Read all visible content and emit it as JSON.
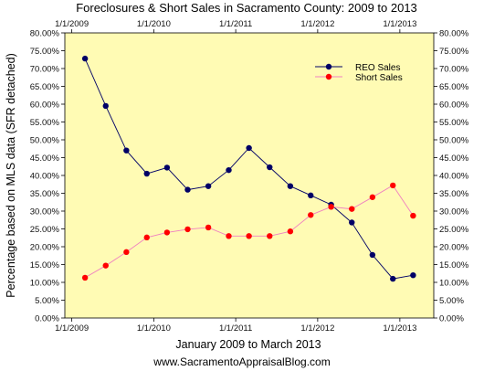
{
  "chart_data": {
    "type": "line",
    "title": "Foreclosures &  Short Sales in Sacramento County: 2009 to 2013",
    "xlabel": "January 2009 to March 2013",
    "ylabel": "Percentage based on MLS data (SFR detached)",
    "footer": "www.SacramentoAppraisalBlog.com",
    "x_ticks": [
      "1/1/2009",
      "1/1/2010",
      "1/1/2011",
      "1/1/2012",
      "1/1/2013"
    ],
    "x_range": [
      "2008-12-01",
      "2013-06-01"
    ],
    "ylim": [
      0,
      80
    ],
    "y_ticks": [
      "0.00%",
      "5.00%",
      "10.00%",
      "15.00%",
      "20.00%",
      "25.00%",
      "30.00%",
      "35.00%",
      "40.00%",
      "45.00%",
      "50.00%",
      "55.00%",
      "60.00%",
      "65.00%",
      "70.00%",
      "75.00%",
      "80.00%"
    ],
    "legend_position": "top-right",
    "grid": false,
    "x": [
      "2009-03-01",
      "2009-06-01",
      "2009-09-01",
      "2009-12-01",
      "2010-03-01",
      "2010-06-01",
      "2010-09-01",
      "2010-12-01",
      "2011-03-01",
      "2011-06-01",
      "2011-09-01",
      "2011-12-01",
      "2012-03-01",
      "2012-06-01",
      "2012-09-01",
      "2012-12-01",
      "2013-03-01"
    ],
    "series": [
      {
        "name": "REO Sales",
        "line_color": "#000066",
        "marker_color": "#000066",
        "values": [
          72.8,
          59.5,
          47.0,
          40.5,
          42.2,
          36.0,
          37.0,
          41.5,
          47.7,
          42.3,
          37.0,
          34.4,
          31.8,
          26.8,
          17.7,
          11.0,
          12.0
        ]
      },
      {
        "name": "Short Sales",
        "line_color": "#f080c0",
        "marker_color": "#ff0000",
        "values": [
          11.3,
          14.7,
          18.5,
          22.6,
          24.0,
          24.9,
          25.4,
          23.0,
          23.0,
          23.0,
          24.3,
          28.9,
          31.2,
          30.6,
          33.9,
          37.2,
          28.7
        ]
      }
    ],
    "colors": {
      "plot_background": "#fffbb4"
    }
  }
}
